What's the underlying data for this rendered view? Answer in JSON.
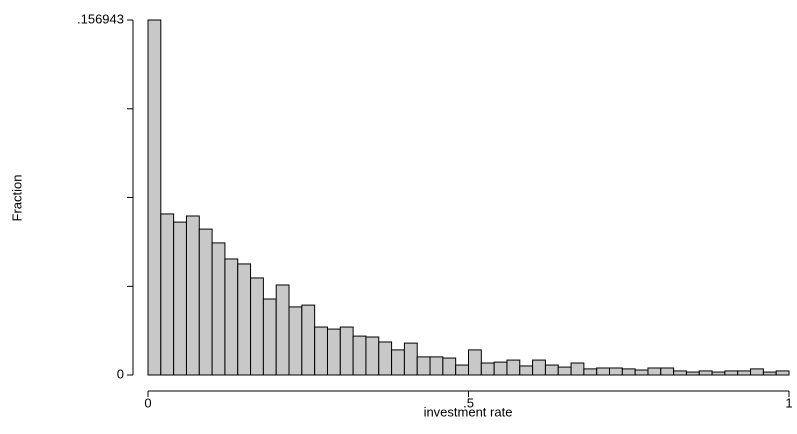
{
  "chart_data": {
    "type": "histogram",
    "xlabel": "investment rate",
    "ylabel": "Fraction",
    "bins": [
      0,
      0.02,
      0.04,
      0.06,
      0.08,
      0.1,
      0.12,
      0.14,
      0.16,
      0.18,
      0.2,
      0.22,
      0.24,
      0.26,
      0.28,
      0.3,
      0.32,
      0.34,
      0.36,
      0.38,
      0.4,
      0.42,
      0.44,
      0.46,
      0.48,
      0.5,
      0.52,
      0.54,
      0.56,
      0.58,
      0.6,
      0.62,
      0.64,
      0.66,
      0.68,
      0.7,
      0.72,
      0.74,
      0.76,
      0.78,
      0.8,
      0.82,
      0.84,
      0.86,
      0.88,
      0.9,
      0.92,
      0.94,
      0.96,
      0.98,
      1
    ],
    "values": [
      0.156943,
      0.0712,
      0.0676,
      0.0703,
      0.0645,
      0.0584,
      0.0513,
      0.0491,
      0.0429,
      0.0336,
      0.0398,
      0.0301,
      0.0309,
      0.0212,
      0.0203,
      0.0212,
      0.0172,
      0.0168,
      0.0146,
      0.0111,
      0.0141,
      0.008,
      0.008,
      0.0075,
      0.0044,
      0.0111,
      0.0053,
      0.0057,
      0.0066,
      0.004,
      0.0066,
      0.0044,
      0.0035,
      0.0053,
      0.0027,
      0.0031,
      0.0031,
      0.0027,
      0.0022,
      0.0031,
      0.0031,
      0.0018,
      0.0013,
      0.0018,
      0.0013,
      0.0018,
      0.0018,
      0.0027,
      0.0013,
      0.0018
    ],
    "color": "#c8c8c8",
    "xlim": [
      0,
      1
    ],
    "xticks": [
      0,
      {
        "value": 0.5,
        "label": ".5"
      },
      1
    ],
    "ylim": [
      0,
      0.156943
    ],
    "yticks": [
      0,
      {
        "value": 0.156943,
        "label": ".156943"
      }
    ],
    "yminorticks": [
      0.0392,
      0.0785,
      0.1177
    ]
  }
}
